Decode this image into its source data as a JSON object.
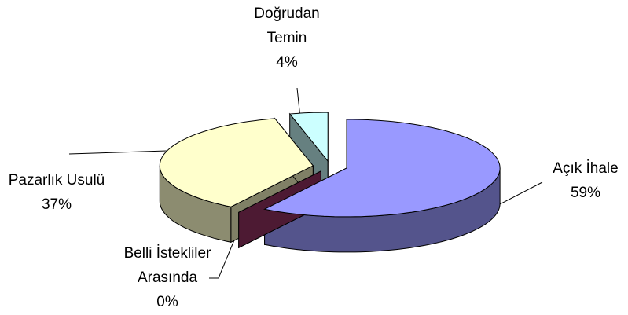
{
  "chart_data": {
    "type": "pie3d",
    "categories": [
      "Açık İhale",
      "Belli İstekliler Arasında",
      "Pazarlık Usulü",
      "Doğrudan Temin"
    ],
    "values": [
      59,
      0,
      37,
      4
    ],
    "value_labels": [
      "59%",
      "0%",
      "37%",
      "4%"
    ],
    "colors": [
      "#9999ff",
      "#993366",
      "#ffffcc",
      "#ccffff"
    ]
  }
}
